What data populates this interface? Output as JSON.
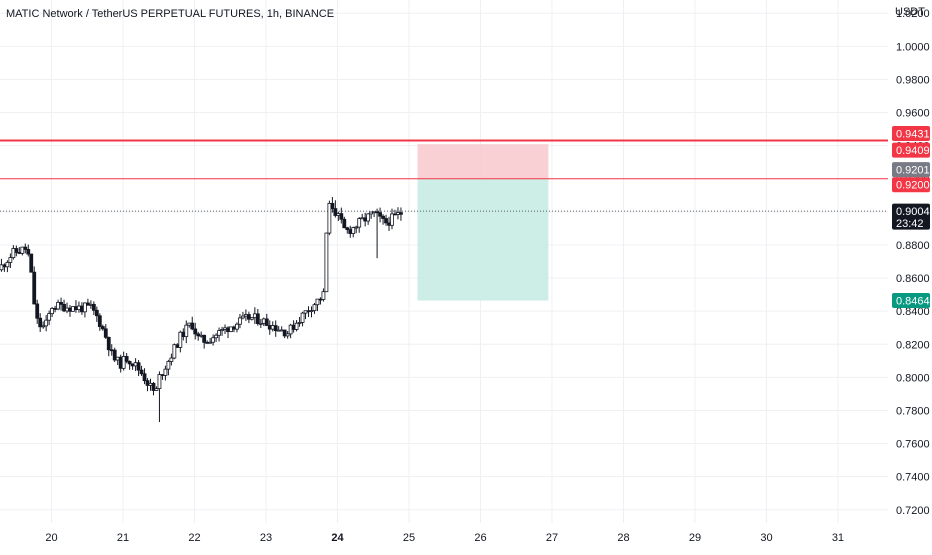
{
  "header": {
    "title": "MATIC Network / TetherUS PERPETUAL FUTURES, 1h, BINANCE"
  },
  "price_axis": {
    "currency_label": "USDT"
  },
  "colors": {
    "background": "#ffffff",
    "grid": "#eef0f3",
    "candle": "#131722",
    "stop_line": "#f23645",
    "stop_zone": "#f7c5cb",
    "target_zone": "#c8ebe4",
    "target_tag": "#089981",
    "entry_tag": "#787b86",
    "current_tag": "#131722",
    "axis_text": "#131722"
  },
  "chart_data": {
    "type": "candlestick",
    "y_axis": {
      "range": [
        0.712,
        1.028
      ],
      "ticks": [
        "1.0200",
        "1.0000",
        "0.9800",
        "0.9600",
        "0.9400",
        "0.9200",
        "0.9000",
        "0.8800",
        "0.8600",
        "0.8400",
        "0.8200",
        "0.8000",
        "0.7800",
        "0.7600",
        "0.7400",
        "0.7200"
      ]
    },
    "x_axis": {
      "ticks": [
        {
          "label": "20",
          "x": 20.0,
          "bold": false
        },
        {
          "label": "21",
          "x": 21.0,
          "bold": false
        },
        {
          "label": "22",
          "x": 22.0,
          "bold": false
        },
        {
          "label": "23",
          "x": 23.0,
          "bold": false
        },
        {
          "label": "24",
          "x": 24.0,
          "bold": true
        },
        {
          "label": "25",
          "x": 25.0,
          "bold": false
        },
        {
          "label": "26",
          "x": 26.0,
          "bold": false
        },
        {
          "label": "27",
          "x": 27.0,
          "bold": false
        },
        {
          "label": "28",
          "x": 28.0,
          "bold": false
        },
        {
          "label": "29",
          "x": 29.0,
          "bold": false
        },
        {
          "label": "30",
          "x": 30.0,
          "bold": false
        },
        {
          "label": "31",
          "x": 31.0,
          "bold": false
        }
      ],
      "visible_range": [
        19.28,
        31.7
      ]
    },
    "price_path": [
      [
        19.3,
        0.865
      ],
      [
        19.5,
        0.875
      ],
      [
        19.7,
        0.878
      ],
      [
        19.75,
        0.865
      ],
      [
        19.8,
        0.845
      ],
      [
        19.85,
        0.832
      ],
      [
        19.95,
        0.83
      ],
      [
        20.05,
        0.843
      ],
      [
        20.2,
        0.843
      ],
      [
        20.4,
        0.842
      ],
      [
        20.6,
        0.842
      ],
      [
        20.7,
        0.835
      ],
      [
        20.8,
        0.825
      ],
      [
        20.9,
        0.812
      ],
      [
        21.0,
        0.808
      ],
      [
        21.1,
        0.812
      ],
      [
        21.2,
        0.808
      ],
      [
        21.3,
        0.803
      ],
      [
        21.4,
        0.796
      ],
      [
        21.5,
        0.79
      ],
      [
        21.55,
        0.8
      ],
      [
        21.7,
        0.812
      ],
      [
        21.85,
        0.825
      ],
      [
        22.0,
        0.833
      ],
      [
        22.1,
        0.823
      ],
      [
        22.2,
        0.822
      ],
      [
        22.35,
        0.826
      ],
      [
        22.5,
        0.83
      ],
      [
        22.65,
        0.833
      ],
      [
        22.8,
        0.836
      ],
      [
        22.95,
        0.835
      ],
      [
        23.1,
        0.832
      ],
      [
        23.25,
        0.829
      ],
      [
        23.35,
        0.827
      ],
      [
        23.5,
        0.835
      ],
      [
        23.65,
        0.842
      ],
      [
        23.78,
        0.847
      ],
      [
        23.85,
        0.85
      ],
      [
        23.9,
        0.9
      ],
      [
        23.95,
        0.905
      ],
      [
        24.05,
        0.897
      ],
      [
        24.15,
        0.888
      ],
      [
        24.25,
        0.89
      ],
      [
        24.4,
        0.895
      ],
      [
        24.55,
        0.899
      ],
      [
        24.7,
        0.893
      ],
      [
        24.85,
        0.897
      ],
      [
        24.95,
        0.9
      ]
    ],
    "candle_spacing_days": 0.0417,
    "candle_count": 135,
    "notable_wicks": [
      {
        "x": 21.5,
        "low": 0.773
      },
      {
        "x": 23.95,
        "high": 0.907
      },
      {
        "x": 24.55,
        "low": 0.872
      }
    ],
    "current_price": 0.9004,
    "countdown": "23:42",
    "position": {
      "side": "short",
      "x_start": 25.12,
      "x_end": 26.95,
      "entry": 0.9201,
      "stop": 0.9409,
      "target": 0.8464,
      "upper_line": 0.9431,
      "entry_line": 0.92
    },
    "price_labels": [
      {
        "key": "upper_line",
        "text": "0.9431",
        "value": 0.9431,
        "color": "#f23645",
        "offset": -7
      },
      {
        "key": "stop",
        "text": "0.9409",
        "value": 0.9409,
        "color": "#f23645",
        "offset": 6
      },
      {
        "key": "entry",
        "text": "0.9201",
        "value": 0.9201,
        "color": "#787b86",
        "offset": -9
      },
      {
        "key": "entry_line",
        "text": "0.9200",
        "value": 0.92,
        "color": "#f23645",
        "offset": 6
      },
      {
        "key": "target",
        "text": "0.8464",
        "value": 0.8464,
        "color": "#089981",
        "offset": 0
      }
    ]
  }
}
